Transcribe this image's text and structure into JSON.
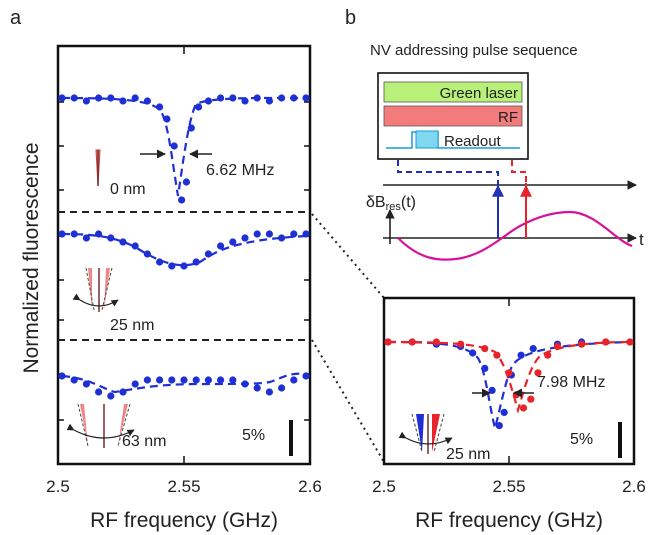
{
  "figure": {
    "panel_a_label": "a",
    "panel_b_label": "b",
    "y_axis_label": "Normalized fluorescence",
    "x_axis_label_a": "RF frequency (GHz)",
    "x_axis_label_b": "RF frequency (GHz)",
    "tick_labels_a": [
      "2.5",
      "2.55",
      "2.6"
    ],
    "tick_labels_b": [
      "2.5",
      "2.55",
      "2.6"
    ],
    "annot_linewidth_a": "6.62 MHz",
    "annot_sep_0": "0 nm",
    "annot_sep_25": "25 nm",
    "annot_sep_63": "63 nm",
    "scale_a": "5%",
    "annot_linewidth_b": "7.98 MHz",
    "annot_sep_b": "25 nm",
    "scale_b": "5%",
    "pulse_title": "NV addressing pulse sequence",
    "legend_green": "Green laser",
    "legend_rf": "RF",
    "legend_readout": "Readout",
    "db_label_main": "δB",
    "db_label_sub": "res",
    "db_label_arg": "(t)",
    "t_label": "t"
  },
  "colors": {
    "blue": "#1f2fd6",
    "red": "#e8232a",
    "magenta": "#d6129a",
    "green_fill": "#b9f07a",
    "red_fill": "#f47b7b",
    "cyan_fill": "#7fd8f0"
  },
  "chart_data": [
    {
      "type": "scatter",
      "panel": "a (top)",
      "xlim": [
        2.5,
        2.6
      ],
      "series": [
        {
          "color": "blue",
          "x": [
            2.5,
            2.505,
            2.51,
            2.515,
            2.52,
            2.525,
            2.53,
            2.535,
            2.54,
            2.543,
            2.546,
            2.549,
            2.551,
            2.553,
            2.556,
            2.56,
            2.565,
            2.57,
            2.575,
            2.58,
            2.585,
            2.59,
            2.595,
            2.6
          ],
          "y": [
            1.0,
            1.0,
            0.99,
            1.0,
            1.0,
            0.99,
            1.0,
            0.99,
            0.97,
            0.93,
            0.84,
            0.66,
            0.72,
            0.9,
            0.97,
            0.99,
            1.0,
            1.0,
            0.99,
            1.0,
            0.99,
            1.0,
            1.0,
            1.0
          ]
        }
      ]
    },
    {
      "type": "scatter",
      "panel": "a (middle)",
      "xlim": [
        2.5,
        2.6
      ],
      "series": [
        {
          "color": "blue",
          "x": [
            2.5,
            2.505,
            2.51,
            2.515,
            2.52,
            2.525,
            2.53,
            2.535,
            2.54,
            2.545,
            2.55,
            2.555,
            2.56,
            2.565,
            2.57,
            2.575,
            2.58,
            2.585,
            2.59,
            2.595,
            2.6
          ],
          "y": [
            1.0,
            1.0,
            0.99,
            1.0,
            0.99,
            0.98,
            0.97,
            0.95,
            0.93,
            0.92,
            0.92,
            0.93,
            0.95,
            0.97,
            0.98,
            0.99,
            1.0,
            1.0,
            0.99,
            1.0,
            1.0
          ]
        }
      ]
    },
    {
      "type": "scatter",
      "panel": "a (bottom)",
      "xlim": [
        2.5,
        2.6
      ],
      "series": [
        {
          "color": "blue",
          "x": [
            2.5,
            2.505,
            2.51,
            2.515,
            2.52,
            2.525,
            2.53,
            2.535,
            2.54,
            2.545,
            2.55,
            2.555,
            2.56,
            2.565,
            2.57,
            2.575,
            2.58,
            2.585,
            2.59,
            2.595,
            2.6
          ],
          "y": [
            1.0,
            0.99,
            0.98,
            0.96,
            0.95,
            0.96,
            0.98,
            0.99,
            0.99,
            0.99,
            0.99,
            0.99,
            0.99,
            0.99,
            0.99,
            0.98,
            0.97,
            0.96,
            0.97,
            0.99,
            1.0
          ]
        }
      ]
    },
    {
      "type": "scatter",
      "panel": "b (inset)",
      "xlim": [
        2.5,
        2.6
      ],
      "series": [
        {
          "color": "blue",
          "x": [
            2.5,
            2.51,
            2.52,
            2.53,
            2.535,
            2.54,
            2.543,
            2.546,
            2.548,
            2.551,
            2.555,
            2.56,
            2.57,
            2.58,
            2.59,
            2.6
          ],
          "y": [
            1.0,
            1.0,
            0.99,
            0.98,
            0.95,
            0.88,
            0.78,
            0.62,
            0.68,
            0.85,
            0.94,
            0.97,
            0.99,
            1.0,
            1.0,
            1.0
          ]
        },
        {
          "color": "red",
          "x": [
            2.5,
            2.51,
            2.52,
            2.53,
            2.54,
            2.545,
            2.55,
            2.553,
            2.556,
            2.559,
            2.562,
            2.566,
            2.57,
            2.58,
            2.59,
            2.6
          ],
          "y": [
            1.0,
            1.0,
            1.0,
            0.99,
            0.97,
            0.94,
            0.86,
            0.76,
            0.7,
            0.74,
            0.86,
            0.94,
            0.98,
            0.99,
            1.0,
            1.0
          ]
        }
      ]
    }
  ]
}
